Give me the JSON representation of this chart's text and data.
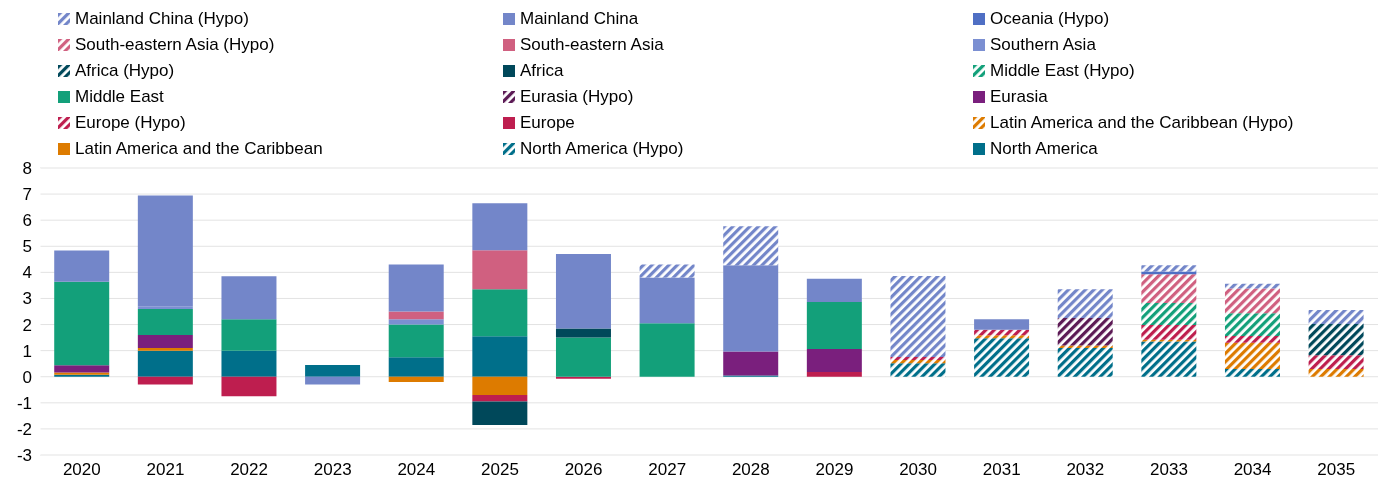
{
  "chart_data": {
    "type": "bar",
    "stacked": true,
    "categories": [
      "2020",
      "2021",
      "2022",
      "2023",
      "2024",
      "2025",
      "2026",
      "2027",
      "2028",
      "2029",
      "2030",
      "2031",
      "2032",
      "2033",
      "2034",
      "2035"
    ],
    "series": [
      {
        "name": "North America",
        "color": "#006f8a",
        "values": [
          0.08,
          1.0,
          1.0,
          0.45,
          0.75,
          1.55,
          null,
          null,
          0.05,
          null,
          null,
          null,
          null,
          null,
          null,
          null
        ]
      },
      {
        "name": "North America (Hypo)",
        "color": "#006f8a",
        "line_style": "dashed",
        "values": [
          null,
          null,
          null,
          null,
          null,
          null,
          null,
          null,
          null,
          null,
          0.52,
          1.47,
          1.1,
          1.35,
          0.3,
          null
        ]
      },
      {
        "name": "Latin America and the Caribbean",
        "color": "#dd7b00",
        "values": [
          0.08,
          0.1,
          null,
          null,
          -0.2,
          -0.7,
          null,
          null,
          null,
          null,
          null,
          null,
          null,
          null,
          null,
          null
        ]
      },
      {
        "name": "Latin America and the Caribbean (Hypo)",
        "color": "#dd7b00",
        "line_style": "dashed",
        "values": [
          null,
          null,
          null,
          null,
          null,
          null,
          null,
          null,
          null,
          null,
          0.12,
          0.12,
          0.1,
          0.07,
          1.0,
          0.3
        ]
      },
      {
        "name": "Europe",
        "color": "#be1e4f",
        "values": [
          null,
          -0.3,
          -0.75,
          null,
          null,
          -0.25,
          -0.08,
          null,
          null,
          0.18,
          null,
          null,
          null,
          null,
          null,
          null
        ]
      },
      {
        "name": "Europe (Hypo)",
        "color": "#be1e4f",
        "line_style": "dashed",
        "values": [
          null,
          null,
          null,
          null,
          null,
          null,
          null,
          null,
          null,
          null,
          0.12,
          0.21,
          null,
          0.56,
          0.26,
          0.52
        ]
      },
      {
        "name": "Eurasia",
        "color": "#7a1f7d",
        "values": [
          0.28,
          0.5,
          null,
          null,
          null,
          null,
          null,
          null,
          0.92,
          0.88,
          null,
          null,
          null,
          null,
          null,
          null
        ]
      },
      {
        "name": "Eurasia (Hypo)",
        "color": "#5c1a55",
        "line_style": "dashed",
        "values": [
          null,
          null,
          null,
          null,
          null,
          null,
          null,
          null,
          null,
          null,
          null,
          null,
          1.05,
          null,
          null,
          null
        ]
      },
      {
        "name": "Middle East",
        "color": "#13a07a",
        "values": [
          3.2,
          1.0,
          1.2,
          null,
          1.25,
          1.8,
          1.5,
          2.05,
          null,
          1.8,
          null,
          null,
          null,
          null,
          null,
          null
        ]
      },
      {
        "name": "Middle East (Hypo)",
        "color": "#13a07a",
        "line_style": "dashed",
        "values": [
          null,
          null,
          null,
          null,
          null,
          null,
          null,
          null,
          null,
          null,
          null,
          null,
          null,
          0.85,
          0.87,
          null
        ]
      },
      {
        "name": "Africa",
        "color": "#00485a",
        "values": [
          null,
          null,
          null,
          null,
          null,
          -0.9,
          0.35,
          null,
          null,
          null,
          null,
          null,
          null,
          null,
          null,
          null
        ]
      },
      {
        "name": "Africa (Hypo)",
        "color": "#00485a",
        "line_style": "dashed",
        "values": [
          null,
          null,
          null,
          null,
          null,
          null,
          null,
          null,
          null,
          null,
          null,
          null,
          null,
          null,
          null,
          1.2
        ]
      },
      {
        "name": "Southern Asia",
        "color": "#7b8fd2",
        "values": [
          null,
          0.1,
          null,
          null,
          0.2,
          null,
          null,
          null,
          null,
          null,
          null,
          null,
          null,
          null,
          null,
          null
        ]
      },
      {
        "name": "South-eastern Asia",
        "color": "#d06080",
        "values": [
          null,
          null,
          null,
          null,
          0.3,
          1.5,
          null,
          null,
          null,
          null,
          null,
          null,
          null,
          null,
          null,
          null
        ]
      },
      {
        "name": "South-eastern Asia (Hypo)",
        "color": "#d06080",
        "line_style": "dashed",
        "values": [
          null,
          null,
          null,
          null,
          null,
          null,
          null,
          null,
          null,
          null,
          null,
          null,
          null,
          1.1,
          0.95,
          null
        ]
      },
      {
        "name": "Oceania (Hypo)",
        "color": "#4f6fc4",
        "values": [
          null,
          null,
          null,
          null,
          null,
          null,
          null,
          null,
          null,
          null,
          null,
          null,
          null,
          0.1,
          null,
          null
        ]
      },
      {
        "name": "Mainland China",
        "color": "#7386c9",
        "values": [
          1.2,
          4.25,
          1.65,
          -0.3,
          1.8,
          1.8,
          2.85,
          1.75,
          3.3,
          0.9,
          null,
          0.4,
          null,
          null,
          null,
          null
        ]
      },
      {
        "name": "Mainland China (Hypo)",
        "color": "#7386c9",
        "line_style": "dashed",
        "values": [
          null,
          null,
          null,
          null,
          null,
          null,
          null,
          0.5,
          1.5,
          null,
          3.1,
          null,
          1.1,
          0.24,
          0.18,
          0.54
        ]
      }
    ],
    "ylim": [
      -3,
      8
    ],
    "yticks": [
      -3,
      -2,
      -1,
      0,
      1,
      2,
      3,
      4,
      5,
      6,
      7,
      8
    ],
    "grid": "y",
    "legend": "top"
  }
}
